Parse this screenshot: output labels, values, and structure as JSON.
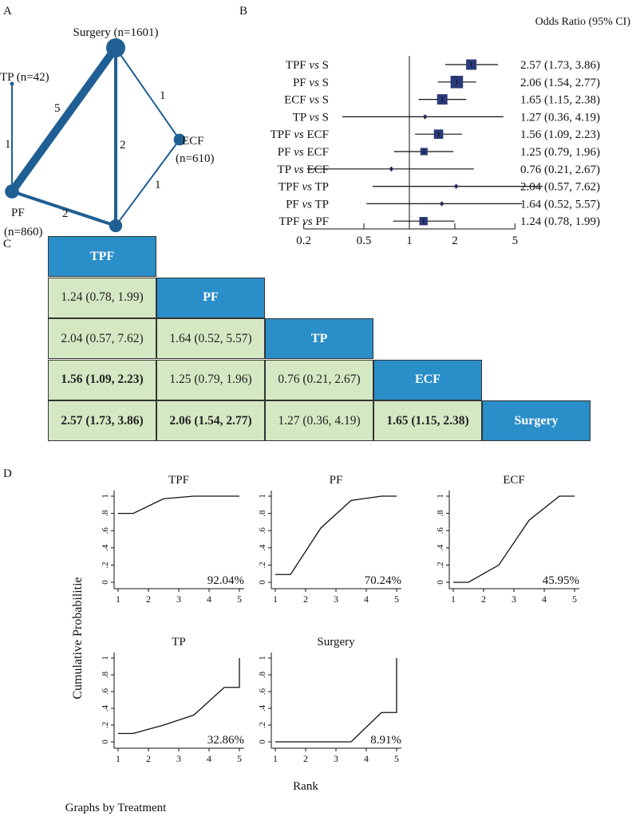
{
  "panel_labels": [
    "A",
    "B",
    "C",
    "D"
  ],
  "colors": {
    "network": "#1f5f94",
    "box": "#2a3a78",
    "header": "#2a8ec8",
    "cell": "#d5e8c4"
  },
  "chart_data": [
    {
      "type": "network",
      "nodes": [
        {
          "id": "Surgery",
          "label": "Surgery (n=1601)",
          "n": 1601
        },
        {
          "id": "TP",
          "label": "TP (n=42)",
          "n": 42
        },
        {
          "id": "ECF",
          "label": "ECF",
          "label2": "(n=610)",
          "n": 610
        },
        {
          "id": "PF",
          "label": "PF",
          "label2": "(n=860)",
          "n": 860
        },
        {
          "id": "TPF",
          "label": "TPF (n=733)",
          "n": 733
        }
      ],
      "edges": [
        {
          "from": "PF",
          "to": "Surgery",
          "studies": "5"
        },
        {
          "from": "TP",
          "to": "PF",
          "studies": "1"
        },
        {
          "from": "Surgery",
          "to": "TPF",
          "studies": "2"
        },
        {
          "from": "Surgery",
          "to": "ECF",
          "studies": "1"
        },
        {
          "from": "ECF",
          "to": "TPF",
          "studies": "1"
        },
        {
          "from": "PF",
          "to": "TPF",
          "studies": "2"
        }
      ]
    },
    {
      "type": "forest",
      "header": "Odds Ratio (95% CI)",
      "xscale": "log",
      "xticks": [
        "0.2",
        "0.5",
        "1",
        "2",
        "5"
      ],
      "reference": 1,
      "rows": [
        {
          "a": "TPF",
          "b": "S",
          "or": 2.57,
          "lo": 1.73,
          "hi": 3.86,
          "weight": 10,
          "text": "2.57 (1.73, 3.86)"
        },
        {
          "a": "PF",
          "b": "S",
          "or": 2.06,
          "lo": 1.54,
          "hi": 2.77,
          "weight": 12,
          "text": "2.06 (1.54, 2.77)"
        },
        {
          "a": "ECF",
          "b": "S",
          "or": 1.65,
          "lo": 1.15,
          "hi": 2.38,
          "weight": 10,
          "text": "1.65 (1.15, 2.38)"
        },
        {
          "a": "TP",
          "b": "S",
          "or": 1.27,
          "lo": 0.36,
          "hi": 4.19,
          "weight": 3,
          "text": "1.27 (0.36, 4.19)"
        },
        {
          "a": "TPF",
          "b": "ECF",
          "or": 1.56,
          "lo": 1.09,
          "hi": 2.23,
          "weight": 9,
          "text": "1.56 (1.09, 2.23)"
        },
        {
          "a": "PF",
          "b": "ECF",
          "or": 1.25,
          "lo": 0.79,
          "hi": 1.96,
          "weight": 7,
          "text": "1.25 (0.79, 1.96)"
        },
        {
          "a": "TP",
          "b": "ECF",
          "or": 0.76,
          "lo": 0.21,
          "hi": 2.67,
          "weight": 3,
          "text": "0.76 (0.21, 2.67)"
        },
        {
          "a": "TPF",
          "b": "TP",
          "or": 2.04,
          "lo": 0.57,
          "hi": 7.62,
          "weight": 3,
          "text": "2.04 (0.57, 7.62)"
        },
        {
          "a": "PF",
          "b": "TP",
          "or": 1.64,
          "lo": 0.52,
          "hi": 5.57,
          "weight": 3,
          "text": "1.64 (0.52, 5.57)"
        },
        {
          "a": "TPF",
          "b": "PF",
          "or": 1.24,
          "lo": 0.78,
          "hi": 1.99,
          "weight": 8,
          "text": "1.24 (0.78, 1.99)"
        }
      ],
      "vs": "vs"
    },
    {
      "type": "table",
      "treatments": [
        "TPF",
        "PF",
        "TP",
        "ECF",
        "Surgery"
      ],
      "cells": [
        [
          {
            "t": "1.24 (0.78, 1.99)",
            "bold": false
          }
        ],
        [
          {
            "t": "2.04 (0.57, 7.62)",
            "bold": false
          },
          {
            "t": "1.64 (0.52, 5.57)",
            "bold": false
          }
        ],
        [
          {
            "t": "1.56 (1.09, 2.23)",
            "bold": true
          },
          {
            "t": "1.25 (0.79, 1.96)",
            "bold": false
          },
          {
            "t": "0.76 (0.21, 2.67)",
            "bold": false
          }
        ],
        [
          {
            "t": "2.57 (1.73, 3.86)",
            "bold": true
          },
          {
            "t": "2.06 (1.54, 2.77)",
            "bold": true
          },
          {
            "t": "1.27 (0.36, 4.19)",
            "bold": false
          },
          {
            "t": "1.65 (1.15, 2.38)",
            "bold": true
          }
        ]
      ]
    },
    {
      "type": "line",
      "ylabel": "Cumulative Probabilitie",
      "xlabel": "Rank",
      "note": "Graphs by Treatment",
      "xticks": [
        "1",
        "2",
        "3",
        "4",
        "5"
      ],
      "yticks": [
        "0",
        ".2",
        ".4",
        ".6",
        ".8",
        "1"
      ],
      "xlim": [
        1,
        5
      ],
      "ylim": [
        0,
        1
      ],
      "panels": [
        {
          "title": "TPF",
          "sucra": "92.04%",
          "x": [
            1,
            1.5,
            2.5,
            3.5,
            4.5,
            5
          ],
          "y": [
            0.8,
            0.8,
            0.97,
            1,
            1,
            1
          ]
        },
        {
          "title": "PF",
          "sucra": "70.24%",
          "x": [
            1,
            1.5,
            2.5,
            3.5,
            4.5,
            5
          ],
          "y": [
            0.09,
            0.09,
            0.63,
            0.95,
            1,
            1
          ]
        },
        {
          "title": "ECF",
          "sucra": "45.95%",
          "x": [
            1,
            1.5,
            2.5,
            3.5,
            4.5,
            5
          ],
          "y": [
            0,
            0,
            0.2,
            0.72,
            1,
            1
          ]
        },
        {
          "title": "TP",
          "sucra": "32.86%",
          "x": [
            1,
            1.5,
            2.5,
            3.5,
            4.5,
            5,
            5
          ],
          "y": [
            0.1,
            0.1,
            0.2,
            0.32,
            0.65,
            0.65,
            1
          ]
        },
        {
          "title": "Surgery",
          "sucra": "8.91%",
          "x": [
            1,
            1.5,
            2.5,
            3.5,
            4.5,
            5,
            5
          ],
          "y": [
            0,
            0,
            0,
            0,
            0.35,
            0.35,
            1
          ]
        }
      ]
    }
  ]
}
